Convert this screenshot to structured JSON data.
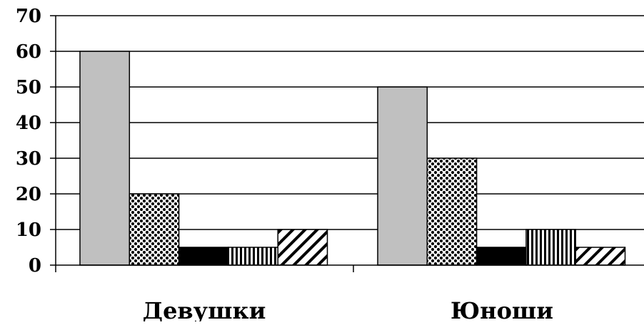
{
  "chart_data": {
    "type": "bar",
    "categories": [
      "Девушки",
      "Юноши"
    ],
    "series": [
      {
        "values": [
          60,
          50
        ],
        "fill": "#c0c0c0",
        "pattern": "solid-gray"
      },
      {
        "values": [
          20,
          30
        ],
        "fill": "#000000",
        "pattern": "dots"
      },
      {
        "values": [
          5,
          5
        ],
        "fill": "#000000",
        "pattern": "solid-black"
      },
      {
        "values": [
          5,
          10
        ],
        "fill": "#000000",
        "pattern": "vertical-lines"
      },
      {
        "values": [
          10,
          5
        ],
        "fill": "#000000",
        "pattern": "diagonal-lines"
      }
    ],
    "yticks": [
      "0",
      "10",
      "20",
      "30",
      "40",
      "50",
      "60",
      "70"
    ],
    "ylim": [
      0,
      70
    ],
    "title": "",
    "xlabel": "",
    "ylabel": "",
    "grid": true,
    "legend": "none"
  }
}
